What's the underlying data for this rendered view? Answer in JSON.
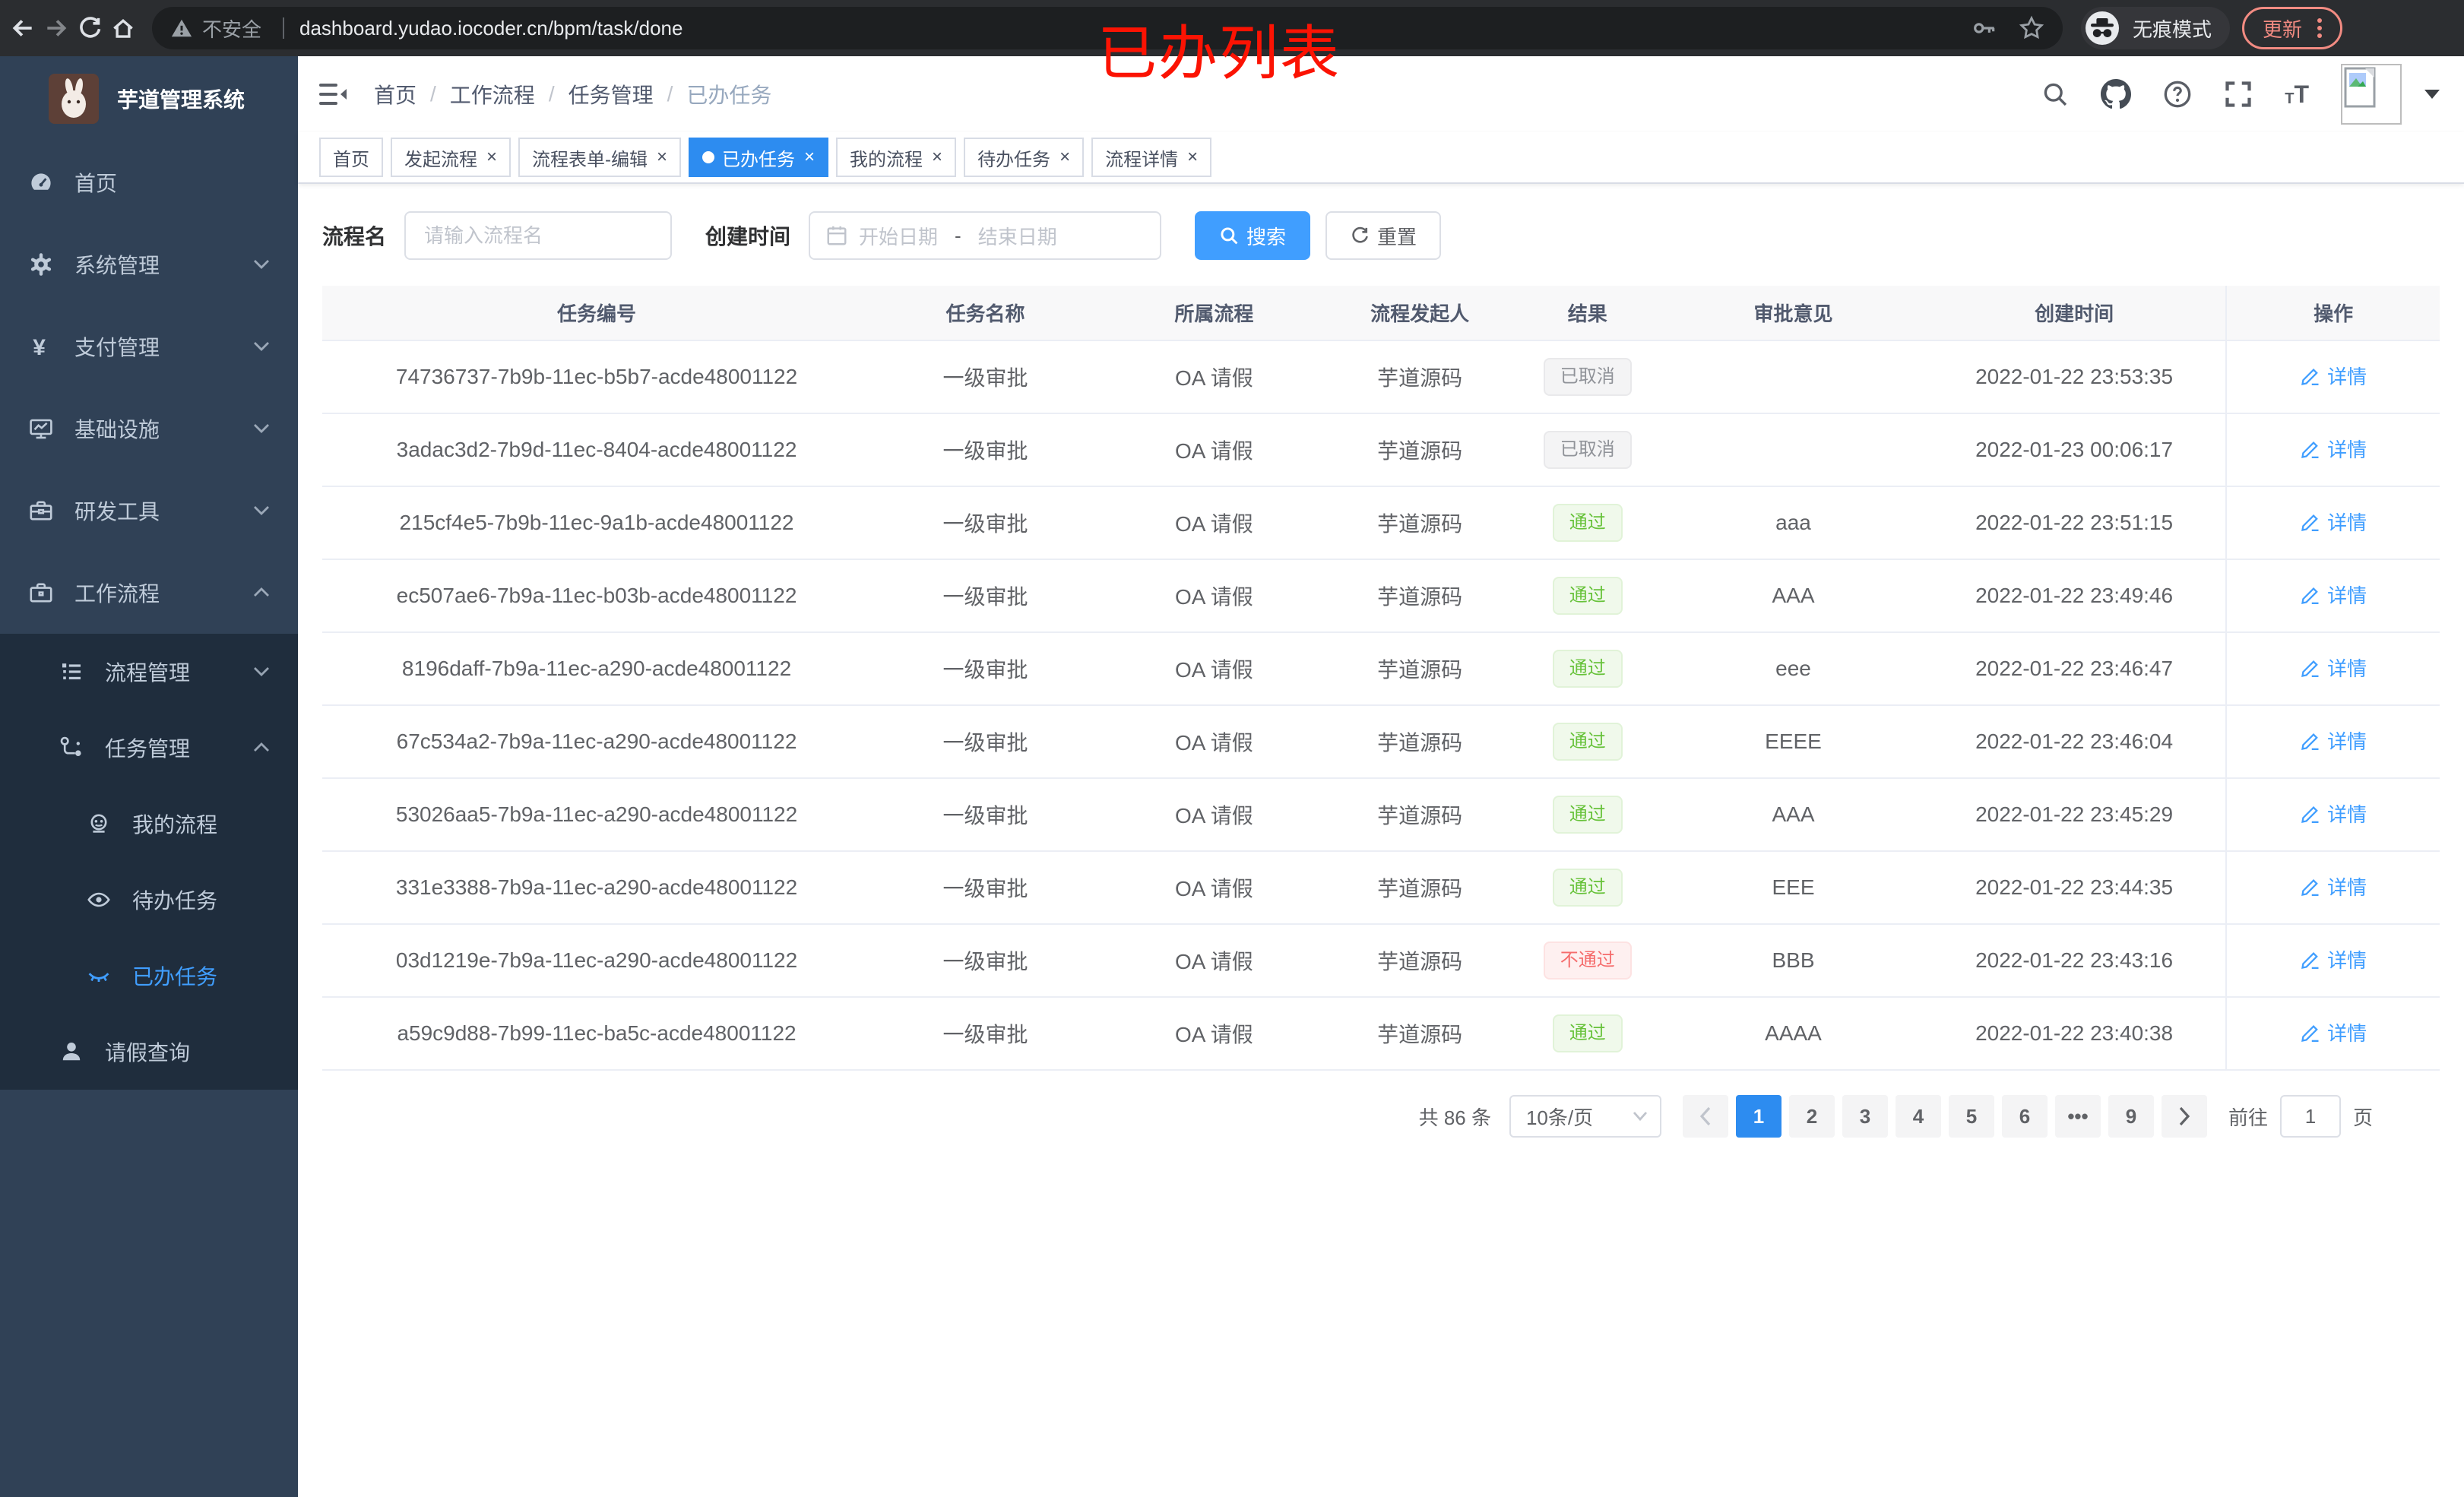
{
  "annotation": {
    "text": "已办列表",
    "color": "#fb1303"
  },
  "browser": {
    "security_warning": "不安全",
    "url": "dashboard.yudao.iocoder.cn/bpm/task/done",
    "incognito_label": "无痕模式",
    "update_label": "更新"
  },
  "sidebar": {
    "app_title": "芋道管理系统",
    "menu": [
      {
        "label": "首页",
        "icon": "dashboard-icon",
        "level": 1,
        "chevron": "",
        "sub": false,
        "active": false
      },
      {
        "label": "系统管理",
        "icon": "gear-icon",
        "level": 1,
        "chevron": "down",
        "sub": false,
        "active": false
      },
      {
        "label": "支付管理",
        "icon": "yen-icon",
        "level": 1,
        "chevron": "down",
        "sub": false,
        "active": false
      },
      {
        "label": "基础设施",
        "icon": "monitor-icon",
        "level": 1,
        "chevron": "down",
        "sub": false,
        "active": false
      },
      {
        "label": "研发工具",
        "icon": "toolbox-icon",
        "level": 1,
        "chevron": "down",
        "sub": false,
        "active": false
      },
      {
        "label": "工作流程",
        "icon": "briefcase-icon",
        "level": 1,
        "chevron": "up",
        "sub": false,
        "active": false
      },
      {
        "label": "流程管理",
        "icon": "list-tree-icon",
        "level": 2,
        "chevron": "down",
        "sub": true,
        "active": false
      },
      {
        "label": "任务管理",
        "icon": "flow-icon",
        "level": 2,
        "chevron": "up",
        "sub": true,
        "active": false
      },
      {
        "label": "我的流程",
        "icon": "robot-icon",
        "level": 3,
        "chevron": "",
        "sub": true,
        "active": false
      },
      {
        "label": "待办任务",
        "icon": "eye-open-icon",
        "level": 3,
        "chevron": "",
        "sub": true,
        "active": false
      },
      {
        "label": "已办任务",
        "icon": "eye-closed-icon",
        "level": 3,
        "chevron": "",
        "sub": true,
        "active": true
      },
      {
        "label": "请假查询",
        "icon": "user-icon",
        "level": 2,
        "chevron": "",
        "sub": true,
        "active": false
      }
    ]
  },
  "header": {
    "breadcrumb": [
      "首页",
      "工作流程",
      "任务管理",
      "已办任务"
    ]
  },
  "tabs": [
    {
      "label": "首页",
      "closable": false,
      "active": false
    },
    {
      "label": "发起流程",
      "closable": true,
      "active": false
    },
    {
      "label": "流程表单-编辑",
      "closable": true,
      "active": false
    },
    {
      "label": "已办任务",
      "closable": true,
      "active": true
    },
    {
      "label": "我的流程",
      "closable": true,
      "active": false
    },
    {
      "label": "待办任务",
      "closable": true,
      "active": false
    },
    {
      "label": "流程详情",
      "closable": true,
      "active": false
    }
  ],
  "filters": {
    "process_name_label": "流程名",
    "process_name_placeholder": "请输入流程名",
    "create_time_label": "创建时间",
    "date_start_placeholder": "开始日期",
    "date_separator": "-",
    "date_end_placeholder": "结束日期",
    "search_label": "搜索",
    "reset_label": "重置"
  },
  "table": {
    "columns": [
      "任务编号",
      "任务名称",
      "所属流程",
      "流程发起人",
      "结果",
      "审批意见",
      "创建时间",
      "操作"
    ],
    "action_label": "详情",
    "rows": [
      {
        "id": "74736737-7b9b-11ec-b5b7-acde48001122",
        "name": "一级审批",
        "process": "OA 请假",
        "starter": "芋道源码",
        "result": "已取消",
        "result_type": "info",
        "opinion": "",
        "created": "2022-01-22 23:53:35"
      },
      {
        "id": "3adac3d2-7b9d-11ec-8404-acde48001122",
        "name": "一级审批",
        "process": "OA 请假",
        "starter": "芋道源码",
        "result": "已取消",
        "result_type": "info",
        "opinion": "",
        "created": "2022-01-23 00:06:17"
      },
      {
        "id": "215cf4e5-7b9b-11ec-9a1b-acde48001122",
        "name": "一级审批",
        "process": "OA 请假",
        "starter": "芋道源码",
        "result": "通过",
        "result_type": "success",
        "opinion": "aaa",
        "created": "2022-01-22 23:51:15"
      },
      {
        "id": "ec507ae6-7b9a-11ec-b03b-acde48001122",
        "name": "一级审批",
        "process": "OA 请假",
        "starter": "芋道源码",
        "result": "通过",
        "result_type": "success",
        "opinion": "AAA",
        "created": "2022-01-22 23:49:46"
      },
      {
        "id": "8196daff-7b9a-11ec-a290-acde48001122",
        "name": "一级审批",
        "process": "OA 请假",
        "starter": "芋道源码",
        "result": "通过",
        "result_type": "success",
        "opinion": "eee",
        "created": "2022-01-22 23:46:47"
      },
      {
        "id": "67c534a2-7b9a-11ec-a290-acde48001122",
        "name": "一级审批",
        "process": "OA 请假",
        "starter": "芋道源码",
        "result": "通过",
        "result_type": "success",
        "opinion": "EEEE",
        "created": "2022-01-22 23:46:04"
      },
      {
        "id": "53026aa5-7b9a-11ec-a290-acde48001122",
        "name": "一级审批",
        "process": "OA 请假",
        "starter": "芋道源码",
        "result": "通过",
        "result_type": "success",
        "opinion": "AAA",
        "created": "2022-01-22 23:45:29"
      },
      {
        "id": "331e3388-7b9a-11ec-a290-acde48001122",
        "name": "一级审批",
        "process": "OA 请假",
        "starter": "芋道源码",
        "result": "通过",
        "result_type": "success",
        "opinion": "EEE",
        "created": "2022-01-22 23:44:35"
      },
      {
        "id": "03d1219e-7b9a-11ec-a290-acde48001122",
        "name": "一级审批",
        "process": "OA 请假",
        "starter": "芋道源码",
        "result": "不通过",
        "result_type": "danger",
        "opinion": "BBB",
        "created": "2022-01-22 23:43:16"
      },
      {
        "id": "a59c9d88-7b99-11ec-ba5c-acde48001122",
        "name": "一级审批",
        "process": "OA 请假",
        "starter": "芋道源码",
        "result": "通过",
        "result_type": "success",
        "opinion": "AAAA",
        "created": "2022-01-22 23:40:38"
      }
    ]
  },
  "pagination": {
    "total_text": "共 86 条",
    "page_size": "10条/页",
    "pages": [
      "1",
      "2",
      "3",
      "4",
      "5",
      "6",
      "•••",
      "9"
    ],
    "active_page": "1",
    "goto_label": "前往",
    "goto_value": "1",
    "goto_unit": "页"
  },
  "colors": {
    "primary": "#409eff",
    "tab_active": "#2d8cf0",
    "sidebar_bg": "#304156",
    "sidebar_sub_bg": "#1f2d3d",
    "success": "#67c23a",
    "danger": "#f56c6c",
    "info": "#909399"
  }
}
